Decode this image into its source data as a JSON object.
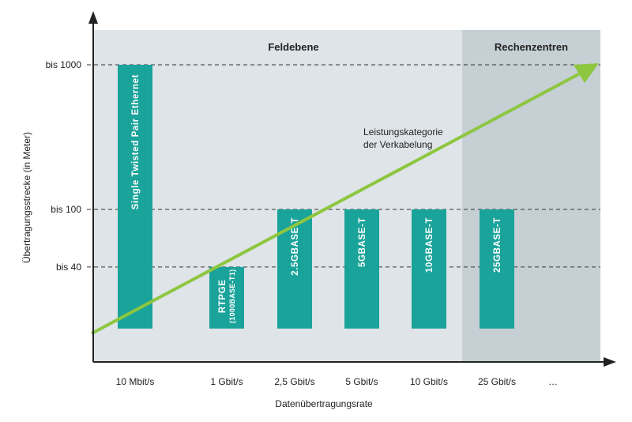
{
  "chart_data": {
    "type": "bar",
    "xlabel": "Datenübertragungsrate",
    "ylabel": "Übertragungsstrecke (in Meter)",
    "categories": [
      "10 Mbit/s",
      "1 Gbit/s",
      "2,5 Gbit/s",
      "5 Gbit/s",
      "10 Gbit/s",
      "25 Gbit/s",
      "…"
    ],
    "y_ticks": [
      {
        "value": 1000,
        "label": "bis 1000"
      },
      {
        "value": 100,
        "label": "bis 100"
      },
      {
        "value": 40,
        "label": "bis 40"
      }
    ],
    "y_scale": "log",
    "grid": "dashed horizontal lines at tick values",
    "bars": [
      {
        "category": "10 Mbit/s",
        "value": 1000,
        "label": "Single Twisted Pair Ethernet",
        "sublabel": ""
      },
      {
        "category": "1 Gbit/s",
        "value": 40,
        "label": "RTPGE",
        "sublabel": "(1000BASE-T1)"
      },
      {
        "category": "2,5 Gbit/s",
        "value": 100,
        "label": "2.5GBASE-T",
        "sublabel": ""
      },
      {
        "category": "5 Gbit/s",
        "value": 100,
        "label": "5GBASE-T",
        "sublabel": ""
      },
      {
        "category": "10 Gbit/s",
        "value": 100,
        "label": "10GBASE-T",
        "sublabel": ""
      },
      {
        "category": "25 Gbit/s",
        "value": 100,
        "label": "25GBASE-T",
        "sublabel": ""
      }
    ],
    "regions": [
      {
        "label": "Feldebene",
        "from": "10 Mbit/s",
        "to": "10 Gbit/s"
      },
      {
        "label": "Rechenzentren",
        "from": "25 Gbit/s",
        "to": "…"
      }
    ],
    "annotation": {
      "lines": [
        "Leistungskategorie",
        "der Verkabelung"
      ],
      "trend": "increasing"
    },
    "colors": {
      "bar": "#1aa39a",
      "region_field": "#dfe4e8",
      "region_datacenter": "#c5cfd4",
      "arrow": "#8dc63f",
      "axis": "#222222",
      "grid": "#333333"
    }
  }
}
